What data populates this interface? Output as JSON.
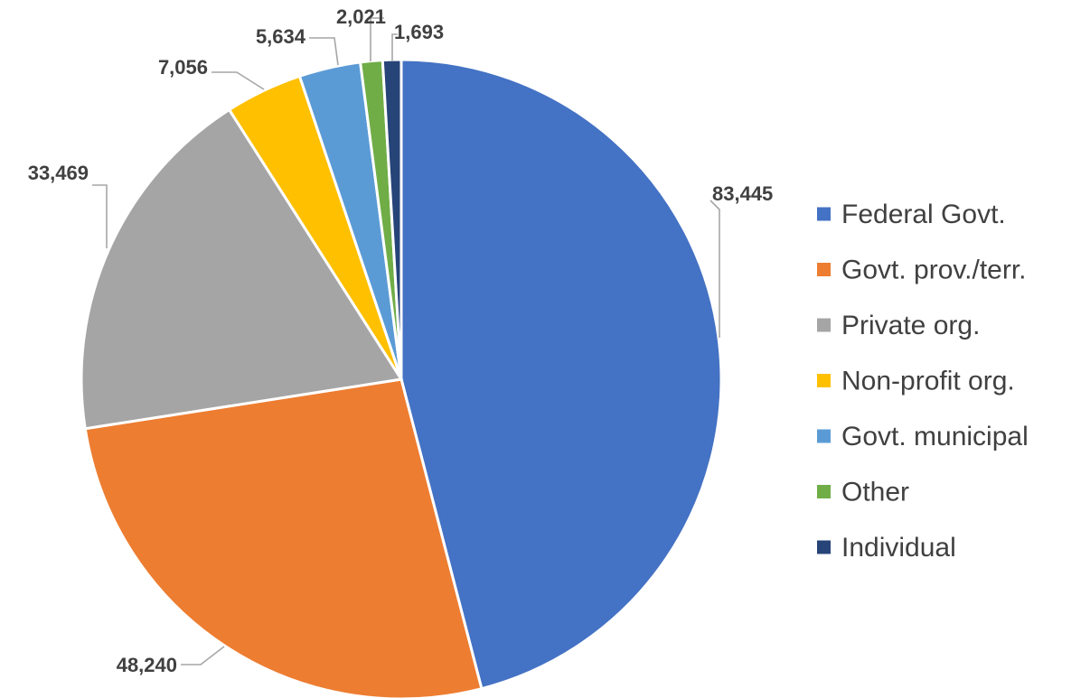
{
  "chart_data": {
    "type": "pie",
    "categories": [
      "Federal Govt.",
      "Govt. prov./terr.",
      "Private org.",
      "Non-profit org.",
      "Govt. municipal",
      "Other",
      "Individual"
    ],
    "values": [
      83445,
      48240,
      33469,
      7056,
      5634,
      2021,
      1693
    ],
    "data_labels": [
      "83,445",
      "48,240",
      "33,469",
      "7,056",
      "5,634",
      "2,021",
      "1,693"
    ],
    "colors": [
      "#4472c4",
      "#ed7d31",
      "#a5a5a5",
      "#ffc000",
      "#5b9bd5",
      "#70ad47",
      "#264478"
    ],
    "start_angle": "12 o'clock",
    "direction": "clockwise",
    "legend_position": "right"
  }
}
